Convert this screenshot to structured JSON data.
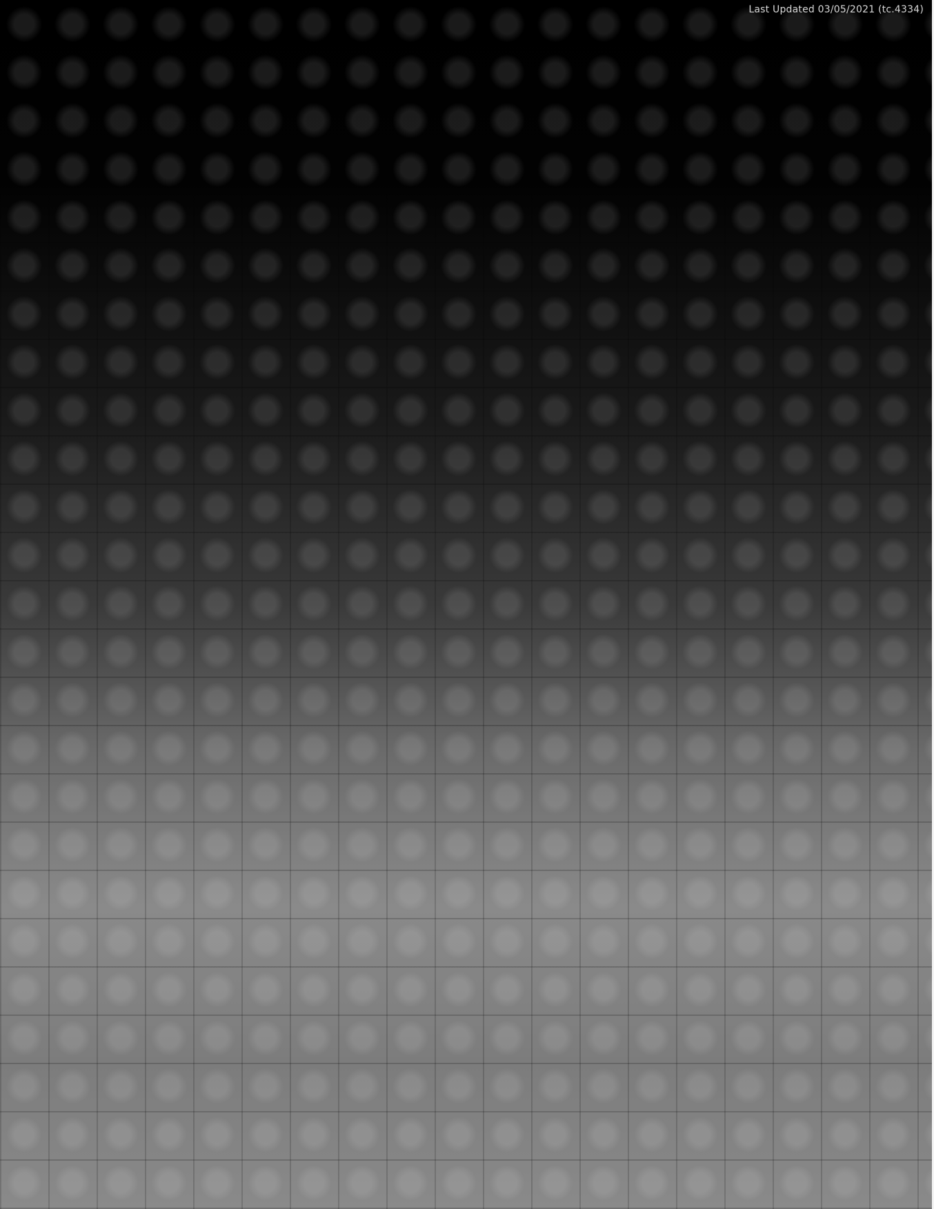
{
  "status": {
    "last_updated": "Last Updated 03/05/2021 (tc.4334)"
  }
}
